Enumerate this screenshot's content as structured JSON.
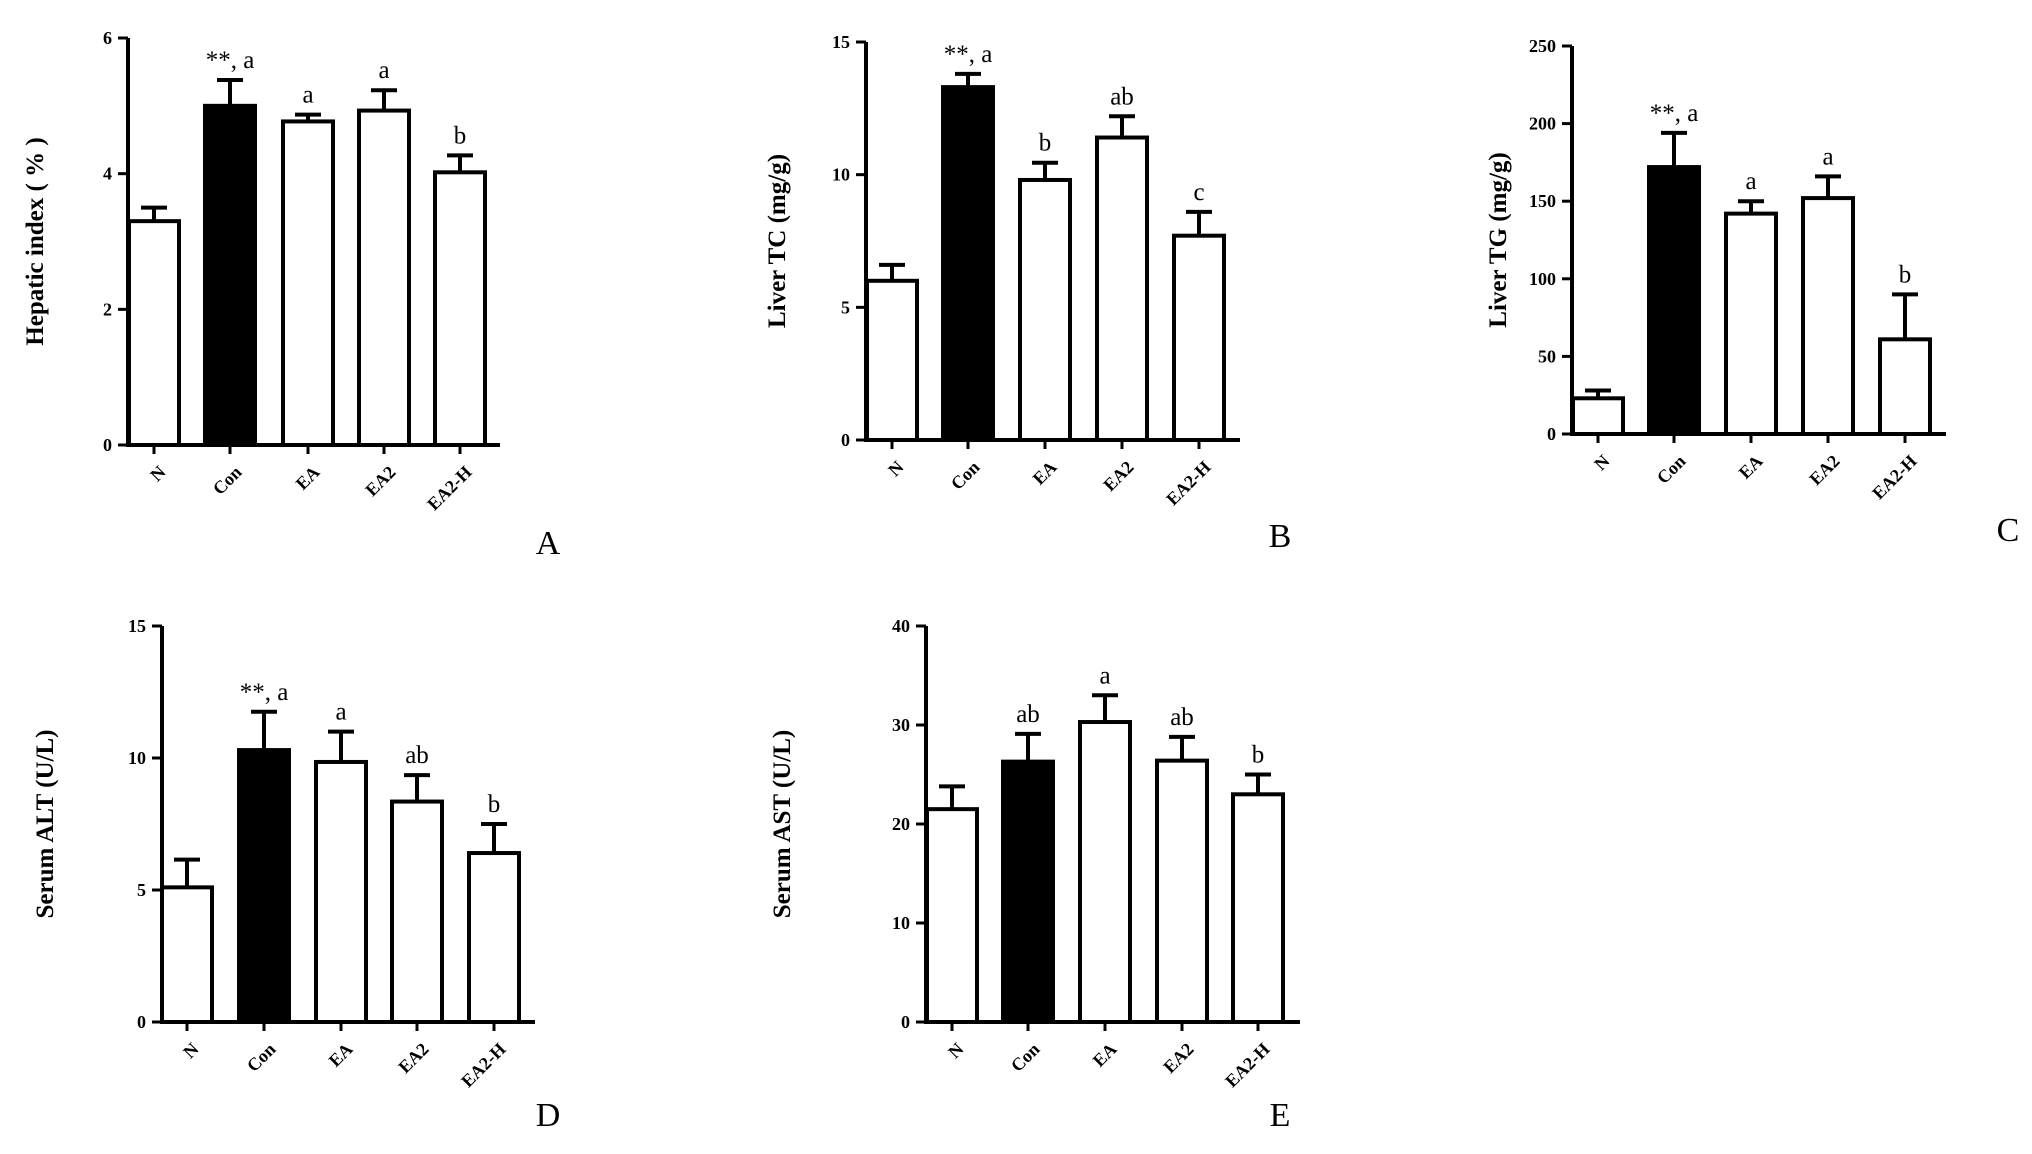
{
  "chart_data": [
    {
      "type": "bar",
      "panel": "A",
      "ylabel": "Hepatic index ( % )",
      "categories": [
        "N",
        "Con",
        "EA",
        "EA2",
        "EA2-H"
      ],
      "values": [
        3.3,
        5.0,
        4.77,
        4.93,
        4.02
      ],
      "errors": [
        0.2,
        0.38,
        0.1,
        0.3,
        0.25
      ],
      "annotations": [
        "",
        "**, a",
        "a",
        "a",
        "b"
      ],
      "filled": [
        false,
        true,
        false,
        false,
        false
      ],
      "ylim": [
        0,
        6
      ],
      "yticks": [
        "0",
        "2",
        "4",
        "6"
      ]
    },
    {
      "type": "bar",
      "panel": "B",
      "ylabel": "Liver TC (mg/g)",
      "categories": [
        "N",
        "Con",
        "EA",
        "EA2",
        "EA2-H"
      ],
      "values": [
        6.0,
        13.3,
        9.8,
        11.4,
        7.7
      ],
      "errors": [
        0.6,
        0.5,
        0.65,
        0.8,
        0.9
      ],
      "annotations": [
        "",
        "**, a",
        "b",
        "ab",
        "c"
      ],
      "filled": [
        false,
        true,
        false,
        false,
        false
      ],
      "ylim": [
        0,
        15
      ],
      "yticks": [
        "0",
        "5",
        "10",
        "15"
      ]
    },
    {
      "type": "bar",
      "panel": "C",
      "ylabel": "Liver TG (mg/g)",
      "categories": [
        "N",
        "Con",
        "EA",
        "EA2",
        "EA2-H"
      ],
      "values": [
        23,
        172,
        142,
        152,
        61
      ],
      "errors": [
        5,
        22,
        8,
        14,
        29
      ],
      "annotations": [
        "",
        "**, a",
        "a",
        "a",
        "b"
      ],
      "filled": [
        false,
        true,
        false,
        false,
        false
      ],
      "ylim": [
        0,
        250
      ],
      "yticks": [
        "0",
        "50",
        "100",
        "150",
        "200",
        "250"
      ]
    },
    {
      "type": "bar",
      "panel": "D",
      "ylabel": "Serum ALT (U/L)",
      "categories": [
        "N",
        "Con",
        "EA",
        "EA2",
        "EA2-H"
      ],
      "values": [
        5.1,
        10.3,
        9.85,
        8.35,
        6.4
      ],
      "errors": [
        1.05,
        1.45,
        1.15,
        1.0,
        1.1
      ],
      "annotations": [
        "",
        "**, a",
        "a",
        "ab",
        "b"
      ],
      "filled": [
        false,
        true,
        false,
        false,
        false
      ],
      "ylim": [
        0,
        15
      ],
      "yticks": [
        "0",
        "5",
        "10",
        "15"
      ]
    },
    {
      "type": "bar",
      "panel": "E",
      "ylabel": "Serum AST (U/L)",
      "categories": [
        "N",
        "Con",
        "EA",
        "EA2",
        "EA2-H"
      ],
      "values": [
        21.5,
        26.3,
        30.3,
        26.4,
        23.0
      ],
      "errors": [
        2.3,
        2.8,
        2.7,
        2.4,
        2.0
      ],
      "annotations": [
        "",
        "ab",
        "a",
        "ab",
        "b"
      ],
      "filled": [
        false,
        true,
        false,
        false,
        false
      ],
      "ylim": [
        0,
        40
      ],
      "yticks": [
        "0",
        "10",
        "20",
        "30",
        "40"
      ]
    }
  ]
}
